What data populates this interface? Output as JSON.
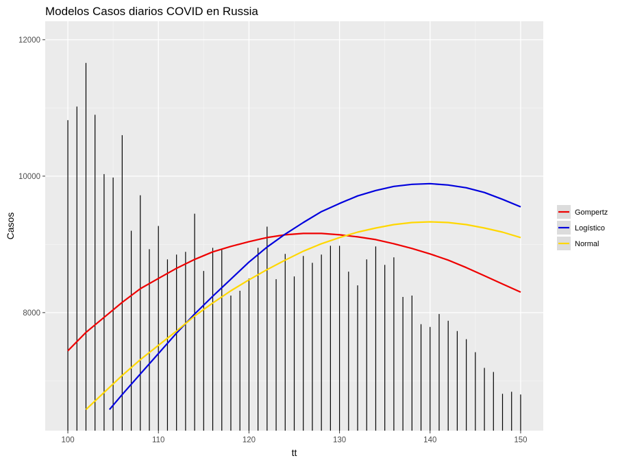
{
  "chart_data": {
    "type": "line",
    "title": "Modelos Casos diarios COVID en Russia",
    "xlabel": "tt",
    "ylabel": "Casos",
    "xlim": [
      97.5,
      152.5
    ],
    "ylim": [
      6270,
      12270
    ],
    "x_ticks": [
      100,
      110,
      120,
      130,
      140,
      150
    ],
    "y_ticks": [
      8000,
      10000,
      12000
    ],
    "grid": true,
    "legend_position": "right",
    "observed": {
      "style": "spikes",
      "color": "#000000",
      "x": [
        100,
        101,
        102,
        103,
        104,
        105,
        106,
        107,
        108,
        109,
        110,
        111,
        112,
        113,
        114,
        115,
        116,
        117,
        118,
        119,
        120,
        121,
        122,
        123,
        124,
        125,
        126,
        127,
        128,
        129,
        130,
        131,
        132,
        133,
        134,
        135,
        136,
        137,
        138,
        139,
        140,
        141,
        142,
        143,
        144,
        145,
        146,
        147,
        148,
        149,
        150
      ],
      "y": [
        10820,
        11020,
        11660,
        10900,
        10030,
        9980,
        10600,
        9200,
        9720,
        8930,
        9270,
        8780,
        8850,
        8890,
        9450,
        8610,
        8950,
        8920,
        8250,
        8320,
        8500,
        8950,
        9260,
        8490,
        8860,
        8530,
        8830,
        8730,
        8850,
        8980,
        8980,
        8600,
        8400,
        8780,
        8970,
        8700,
        8810,
        8230,
        8250,
        7830,
        7790,
        7980,
        7880,
        7730,
        7610,
        7420,
        7190,
        7130,
        6810,
        6840,
        6800
      ]
    },
    "series": [
      {
        "name": "Gompertz",
        "color": "#ee0000",
        "x": [
          100,
          102,
          104,
          106,
          108,
          110,
          112,
          114,
          116,
          118,
          120,
          122,
          124,
          126,
          128,
          130,
          132,
          134,
          136,
          138,
          140,
          142,
          144,
          146,
          148,
          150
        ],
        "y": [
          7440,
          7710,
          7930,
          8150,
          8350,
          8500,
          8650,
          8780,
          8890,
          8970,
          9040,
          9100,
          9140,
          9160,
          9160,
          9140,
          9110,
          9070,
          9010,
          8940,
          8860,
          8770,
          8660,
          8540,
          8420,
          8300
        ]
      },
      {
        "name": "Logístico",
        "color": "#0000dd",
        "x": [
          104.6,
          106,
          108,
          110,
          112,
          114,
          116,
          118,
          120,
          122,
          124,
          126,
          128,
          130,
          132,
          134,
          136,
          138,
          140,
          142,
          144,
          146,
          148,
          150
        ],
        "y": [
          6580,
          6800,
          7100,
          7400,
          7700,
          7980,
          8240,
          8490,
          8740,
          8960,
          9150,
          9320,
          9480,
          9600,
          9710,
          9790,
          9850,
          9880,
          9890,
          9870,
          9830,
          9760,
          9660,
          9550
        ]
      },
      {
        "name": "Normal",
        "color": "#ffd700",
        "x": [
          102,
          104,
          106,
          108,
          110,
          112,
          114,
          116,
          118,
          120,
          122,
          124,
          126,
          128,
          130,
          132,
          134,
          136,
          138,
          140,
          142,
          144,
          146,
          148,
          150
        ],
        "y": [
          6580,
          6830,
          7080,
          7310,
          7520,
          7730,
          7950,
          8140,
          8320,
          8480,
          8630,
          8770,
          8900,
          9010,
          9100,
          9180,
          9240,
          9290,
          9320,
          9330,
          9320,
          9290,
          9240,
          9180,
          9100
        ]
      }
    ]
  }
}
